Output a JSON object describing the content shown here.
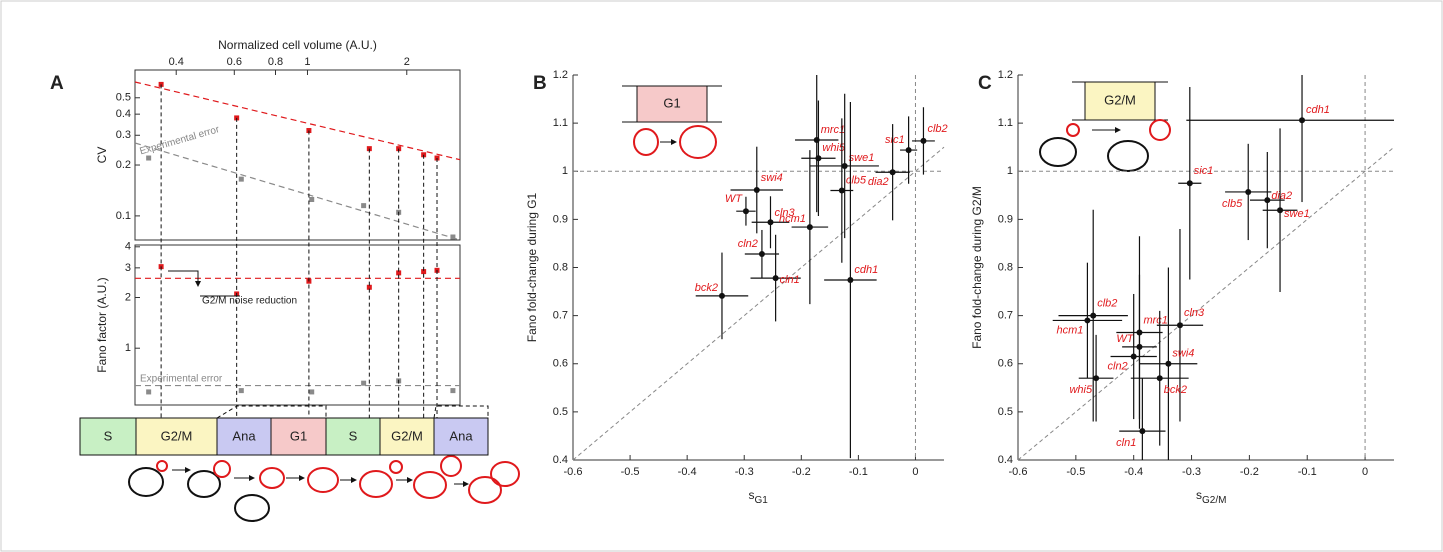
{
  "chart_data": [
    {
      "type": "logscatter",
      "letter": "A",
      "xlabel": "Normalized cell volume (A.U.)",
      "ylabel": "CV",
      "xscale": "log",
      "yscale": "log",
      "xlim": [
        0.3,
        2.9
      ],
      "xticks": [
        0.4,
        0.6,
        0.8,
        1,
        2
      ],
      "ylim": [
        0.072,
        0.73
      ],
      "yticks": [
        0.1,
        0.2,
        0.3,
        0.4,
        0.5
      ],
      "series": [
        {
          "color": "#e0191c",
          "x": [
            0.36,
            0.61,
            1.01,
            1.54,
            1.89,
            2.25,
            2.47
          ],
          "values": [
            0.6,
            0.38,
            0.32,
            0.25,
            0.25,
            0.23,
            0.22
          ]
        },
        {
          "color": "#8a8a8a",
          "x": [
            0.33,
            0.63,
            1.03,
            1.48,
            1.89,
            2.76
          ],
          "values": [
            0.22,
            0.165,
            0.125,
            0.115,
            0.105,
            0.075
          ]
        }
      ],
      "fits": [
        {
          "color": "#e0191c",
          "x": [
            0.3,
            2.9
          ],
          "values": [
            0.62,
            0.215
          ]
        },
        {
          "color": "#8a8a8a",
          "x": [
            0.3,
            2.9
          ],
          "values": [
            0.27,
            0.072
          ]
        }
      ],
      "annotations": [
        "Experimental error"
      ]
    },
    {
      "type": "logscatter",
      "ylabel": "Fano factor (A.U.)",
      "xscale": "log",
      "yscale": "log",
      "xlim": [
        0.3,
        2.9
      ],
      "ylim": [
        0.46,
        4.1
      ],
      "yticks": [
        1,
        2,
        3,
        4
      ],
      "series": [
        {
          "color": "#e0191c",
          "x": [
            0.36,
            0.61,
            1.01,
            1.54,
            1.89,
            2.25,
            2.47
          ],
          "values": [
            3.05,
            2.1,
            2.5,
            2.3,
            2.8,
            2.85,
            2.9
          ]
        },
        {
          "color": "#8a8a8a",
          "x": [
            0.33,
            0.63,
            1.03,
            1.48,
            1.89,
            2.76
          ],
          "values": [
            0.55,
            0.56,
            0.55,
            0.62,
            0.64,
            0.56
          ]
        }
      ],
      "fits": [
        {
          "color": "#e0191c",
          "x": [
            0.3,
            2.9
          ],
          "values": [
            2.6,
            2.6
          ]
        },
        {
          "color": "#8a8a8a",
          "x": [
            0.3,
            2.9
          ],
          "values": [
            0.6,
            0.6
          ]
        }
      ],
      "annotations": [
        "Experimental error",
        "G2/M noise reduction"
      ],
      "phases": [
        "S",
        "G2/M",
        "Ana",
        "G1",
        "S",
        "G2/M",
        "Ana"
      ]
    },
    {
      "type": "errscatter",
      "letter": "B",
      "xlabel": "s",
      "xlabel_sub": "G1",
      "ylabel": "Fano fold-change during G1",
      "inset": "G1",
      "xlim": [
        -0.6,
        0.05
      ],
      "xticks": [
        -0.6,
        -0.5,
        -0.4,
        -0.3,
        -0.2,
        -0.1,
        0
      ],
      "ylim": [
        0.4,
        1.2
      ],
      "yticks": [
        0.4,
        0.5,
        0.6,
        0.7,
        0.8,
        0.9,
        1,
        1.1,
        1.2
      ],
      "hline": 1,
      "vline": 0,
      "diagonal": {
        "x": [
          -0.6,
          0.05
        ],
        "values": [
          0.4,
          1.05
        ]
      },
      "color": "#e0191c",
      "names": [
        "WT",
        "cln3",
        "swi4",
        "hcm1",
        "cln2",
        "cln1",
        "bck2",
        "mrc1",
        "whi5",
        "swe1",
        "clb5",
        "cdh1",
        "sic1",
        "dia2",
        "clb2"
      ],
      "x": [
        -0.297,
        -0.254,
        -0.278,
        -0.185,
        -0.269,
        -0.245,
        -0.339,
        -0.173,
        -0.17,
        -0.124,
        -0.129,
        -0.114,
        -0.012,
        -0.04,
        0.014
      ],
      "values": [
        0.917,
        0.894,
        0.961,
        0.884,
        0.828,
        0.778,
        0.741,
        1.065,
        1.027,
        1.011,
        0.96,
        0.774,
        1.044,
        0.998,
        1.063
      ],
      "xerr": [
        0.017,
        0.033,
        0.046,
        0.032,
        0.03,
        0.044,
        0.046,
        0.038,
        0.03,
        0.06,
        0.02,
        0.046,
        0.015,
        0.03,
        0.02
      ],
      "yerr": [
        0.03,
        0.054,
        0.09,
        0.16,
        0.05,
        0.09,
        0.09,
        0.15,
        0.12,
        0.15,
        0.15,
        0.37,
        0.07,
        0.1,
        0.07
      ]
    },
    {
      "type": "errscatter",
      "letter": "C",
      "xlabel": "s",
      "xlabel_sub": "G2/M",
      "ylabel": "Fano fold-change during G2/M",
      "inset": "G2/M",
      "xlim": [
        -0.6,
        0.05
      ],
      "xticks": [
        -0.6,
        -0.5,
        -0.4,
        -0.3,
        -0.2,
        -0.1,
        0
      ],
      "ylim": [
        0.4,
        1.2
      ],
      "yticks": [
        0.4,
        0.5,
        0.6,
        0.7,
        0.8,
        0.9,
        1,
        1.1,
        1.2
      ],
      "hline": 1,
      "vline": 0,
      "diagonal": {
        "x": [
          -0.6,
          0.05
        ],
        "values": [
          0.4,
          1.05
        ]
      },
      "color": "#e0191c",
      "names": [
        "cdh1",
        "sic1",
        "clb5",
        "dia2",
        "swe1",
        "clb2",
        "hcm1",
        "whi5",
        "mrc1",
        "WT",
        "cln2",
        "cln3",
        "swi4",
        "bck2",
        "cln1"
      ],
      "x": [
        -0.109,
        -0.303,
        -0.202,
        -0.169,
        -0.147,
        -0.47,
        -0.48,
        -0.465,
        -0.39,
        -0.39,
        -0.4,
        -0.32,
        -0.34,
        -0.355,
        -0.385
      ],
      "values": [
        1.106,
        0.975,
        0.957,
        0.94,
        0.919,
        0.7,
        0.69,
        0.57,
        0.665,
        0.635,
        0.615,
        0.68,
        0.6,
        0.57,
        0.46
      ],
      "xerr": [
        0.2,
        0.02,
        0.04,
        0.03,
        0.03,
        0.06,
        0.06,
        0.03,
        0.04,
        0.03,
        0.04,
        0.04,
        0.05,
        0.05,
        0.04
      ],
      "yerr": [
        0.17,
        0.2,
        0.1,
        0.1,
        0.17,
        0.22,
        0.12,
        0.09,
        0.2,
        0.15,
        0.13,
        0.2,
        0.2,
        0.14,
        0.11
      ]
    }
  ]
}
